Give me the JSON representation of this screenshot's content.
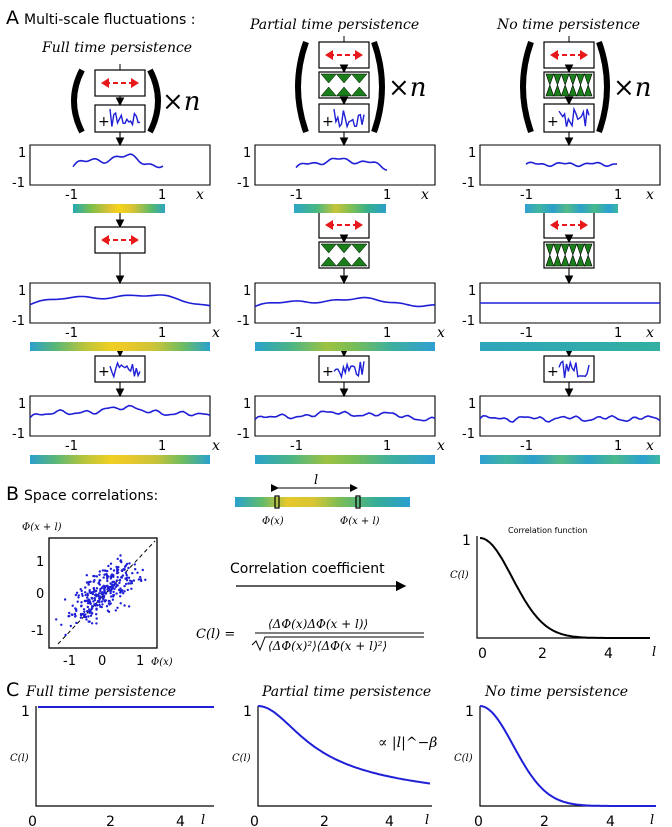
{
  "panel_a": {
    "letter": "A",
    "title": "Multi-scale fluctuations :",
    "columns": [
      {
        "title": "Full time persistence"
      },
      {
        "title": "Partial time persistence"
      },
      {
        "title": "No time persistence"
      }
    ],
    "times_n": "×n",
    "plus": "+",
    "y_ticks": [
      "1",
      "-1"
    ],
    "x_ticks": [
      "-1",
      "1"
    ],
    "x_var": "x"
  },
  "panel_b": {
    "letter": "B",
    "title": "Space correlations:",
    "l_label": "l",
    "phi_x": "Φ(x)",
    "phi_xl": "Φ(x + l)",
    "scatter": {
      "ylabel": "Φ(x + l)",
      "xlabel": "Φ(x)",
      "y_ticks": [
        "1",
        "0",
        "-1"
      ],
      "x_ticks": [
        "-1",
        "0",
        "1"
      ]
    },
    "arrow_label": "Correlation coefficient",
    "formula_lhs": "C(l) =",
    "formula_num": "⟨ΔΦ(x)ΔΦ(x + l)⟩",
    "formula_den": "⟨ΔΦ(x)²⟩⟨ΔΦ(x + l)²⟩",
    "corr_title": "Correlation function",
    "corr_ylabel": "C(l)",
    "corr_y_tick": "1",
    "corr_x_ticks": [
      "0",
      "2",
      "4"
    ],
    "corr_xlabel": "l"
  },
  "panel_c": {
    "letter": "C",
    "plots": [
      {
        "title": "Full time persistence"
      },
      {
        "title": "Partial time persistence",
        "annotation": "∝ |l|^−β"
      },
      {
        "title": "No time persistence"
      }
    ],
    "ylabel": "C(l)",
    "y_tick": "1",
    "x_ticks": [
      "0",
      "2",
      "4"
    ],
    "xlabel": "l"
  },
  "colors": {
    "curve": "#1f1fd6",
    "arrow": "#e8191b",
    "persistence": "#1a7f1a"
  }
}
